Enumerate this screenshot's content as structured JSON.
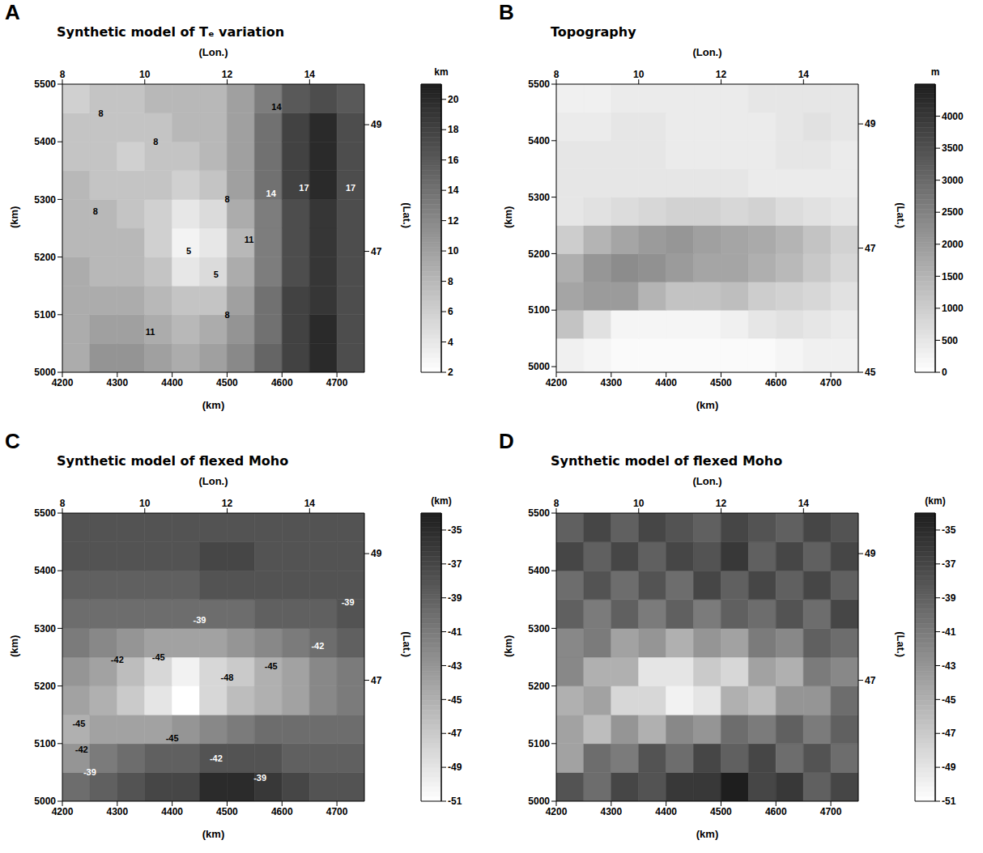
{
  "chart_data": [
    {
      "type": "heatmap",
      "panel": "A",
      "title": "Synthetic model of Tₑ variation",
      "x_label": "(km)",
      "y_label": "(km)",
      "x2_label": "(Lon.)",
      "y2_label": "(Lat.)",
      "xlim": [
        4200,
        4750
      ],
      "xticks": [
        4200,
        4300,
        4400,
        4500,
        4600,
        4700
      ],
      "ylim": [
        5000,
        5500
      ],
      "yticks": [
        5000,
        5100,
        5200,
        5300,
        5400,
        5500
      ],
      "x2lim": [
        8,
        15.33
      ],
      "x2ticks": [
        8,
        10,
        12,
        14
      ],
      "y2lim": [
        45.09,
        49.64
      ],
      "y2ticks": [
        47,
        49
      ],
      "x_edges": [
        4200,
        4250,
        4300,
        4350,
        4400,
        4450,
        4500,
        4550,
        4600,
        4650,
        4700,
        4750
      ],
      "y_edges": [
        5000,
        5050,
        5100,
        5150,
        5200,
        5250,
        5300,
        5350,
        5400,
        5450,
        5500
      ],
      "cells": [
        [
          9,
          11,
          11,
          10,
          9,
          10,
          12,
          15,
          18,
          20,
          17
        ],
        [
          9,
          10,
          10,
          9,
          8,
          9,
          11,
          14,
          18,
          20,
          17
        ],
        [
          9,
          9,
          9,
          8,
          7,
          7,
          10,
          14,
          18,
          19,
          17
        ],
        [
          9,
          8,
          8,
          7,
          4,
          5,
          9,
          13,
          17,
          19,
          17
        ],
        [
          8,
          8,
          8,
          6,
          3,
          4,
          8,
          13,
          17,
          19,
          17
        ],
        [
          8,
          8,
          7,
          6,
          4,
          5,
          9,
          13,
          17,
          19,
          17
        ],
        [
          8,
          7,
          7,
          7,
          6,
          7,
          10,
          14,
          18,
          20,
          17
        ],
        [
          7,
          7,
          6,
          7,
          7,
          8,
          10,
          14,
          18,
          20,
          17
        ],
        [
          7,
          7,
          7,
          7,
          8,
          8,
          10,
          14,
          18,
          20,
          17
        ],
        [
          6,
          7,
          7,
          8,
          8,
          8,
          10,
          13,
          16,
          17,
          16
        ]
      ],
      "colorbar": {
        "label": "km",
        "range": [
          2,
          21
        ],
        "ticks": [
          2,
          4,
          6,
          8,
          10,
          12,
          14,
          16,
          18,
          20
        ]
      },
      "annotations": [
        {
          "x": 4270,
          "y": 5450,
          "text": "8"
        },
        {
          "x": 4260,
          "y": 5280,
          "text": "8"
        },
        {
          "x": 4370,
          "y": 5400,
          "text": "8"
        },
        {
          "x": 4430,
          "y": 5210,
          "text": "5"
        },
        {
          "x": 4480,
          "y": 5170,
          "text": "5"
        },
        {
          "x": 4360,
          "y": 5070,
          "text": "11"
        },
        {
          "x": 4500,
          "y": 5100,
          "text": "8"
        },
        {
          "x": 4500,
          "y": 5300,
          "text": "8"
        },
        {
          "x": 4540,
          "y": 5230,
          "text": "11"
        },
        {
          "x": 4580,
          "y": 5310,
          "text": "14"
        },
        {
          "x": 4590,
          "y": 5460,
          "text": "14"
        },
        {
          "x": 4640,
          "y": 5320,
          "text": "17"
        },
        {
          "x": 4725,
          "y": 5320,
          "text": "17"
        }
      ]
    },
    {
      "type": "heatmap",
      "panel": "B",
      "title": "Topography",
      "x_label": "(km)",
      "y_label": "(km)",
      "x2_label": "(Lon.)",
      "y2_label": "(Lat.)",
      "xlim": [
        4200,
        4750
      ],
      "xticks": [
        4200,
        4300,
        4400,
        4500,
        4600,
        4700
      ],
      "ylim": [
        4990,
        5500
      ],
      "yticks": [
        5000,
        5100,
        5200,
        5300,
        5400,
        5500
      ],
      "x2lim": [
        8,
        15.33
      ],
      "x2ticks": [
        8,
        10,
        12,
        14
      ],
      "y2lim": [
        45,
        49.64
      ],
      "y2ticks": [
        45,
        47,
        49
      ],
      "x_edges": [
        4200,
        4250,
        4300,
        4350,
        4400,
        4450,
        4500,
        4550,
        4600,
        4650,
        4700,
        4750
      ],
      "y_edges": [
        4990,
        5050,
        5100,
        5150,
        5200,
        5250,
        5300,
        5350,
        5400,
        5450,
        5500
      ],
      "cells": [
        [
          300,
          200,
          100,
          100,
          100,
          100,
          100,
          100,
          200,
          300,
          300
        ],
        [
          1200,
          600,
          200,
          200,
          200,
          200,
          300,
          500,
          600,
          500,
          400
        ],
        [
          1800,
          2000,
          2000,
          1500,
          1200,
          1200,
          1300,
          1000,
          900,
          800,
          600
        ],
        [
          1600,
          2100,
          2300,
          2200,
          2000,
          1800,
          1800,
          1600,
          1400,
          1100,
          800
        ],
        [
          1000,
          1500,
          1800,
          2000,
          2100,
          1900,
          1800,
          1700,
          1500,
          1200,
          900
        ],
        [
          500,
          600,
          700,
          800,
          900,
          900,
          800,
          900,
          700,
          600,
          500
        ],
        [
          500,
          500,
          500,
          500,
          500,
          500,
          500,
          400,
          400,
          400,
          400
        ],
        [
          500,
          500,
          500,
          500,
          400,
          400,
          400,
          400,
          500,
          500,
          400
        ],
        [
          400,
          400,
          500,
          500,
          400,
          400,
          400,
          400,
          500,
          600,
          500
        ],
        [
          300,
          300,
          400,
          400,
          400,
          400,
          400,
          500,
          500,
          500,
          500
        ]
      ],
      "colorbar": {
        "label": "m",
        "range": [
          0,
          4500
        ],
        "ticks": [
          0,
          500,
          1000,
          1500,
          2000,
          2500,
          3000,
          3500,
          4000
        ]
      },
      "annotations": []
    },
    {
      "type": "heatmap",
      "panel": "C",
      "title": "Synthetic model of flexed Moho",
      "x_label": "(km)",
      "y_label": "(km)",
      "x2_label": "(Lon.)",
      "y2_label": "(Lat.)",
      "xlim": [
        4200,
        4750
      ],
      "xticks": [
        4200,
        4300,
        4400,
        4500,
        4600,
        4700
      ],
      "ylim": [
        5000,
        5500
      ],
      "yticks": [
        5000,
        5100,
        5200,
        5300,
        5400,
        5500
      ],
      "x2lim": [
        8,
        15.33
      ],
      "x2ticks": [
        8,
        10,
        12,
        14
      ],
      "y2lim": [
        45.09,
        49.64
      ],
      "y2ticks": [
        47,
        49
      ],
      "x_edges": [
        4200,
        4250,
        4300,
        4350,
        4400,
        4450,
        4500,
        4550,
        4600,
        4650,
        4700,
        4750
      ],
      "y_edges": [
        5000,
        5050,
        5100,
        5150,
        5200,
        5250,
        5300,
        5350,
        5400,
        5450,
        5500
      ],
      "cells": [
        [
          -40,
          -39,
          -38,
          -37,
          -37,
          -35,
          -35,
          -36,
          -37,
          -38,
          -38
        ],
        [
          -43,
          -41,
          -40,
          -39,
          -39,
          -38,
          -38,
          -38,
          -39,
          -39,
          -39
        ],
        [
          -45,
          -44,
          -44,
          -44,
          -43,
          -42,
          -41,
          -40,
          -40,
          -40,
          -40
        ],
        [
          -44,
          -45,
          -47,
          -49,
          -51,
          -48,
          -46,
          -45,
          -44,
          -42,
          -41
        ],
        [
          -43,
          -44,
          -46,
          -48,
          -50,
          -48,
          -47,
          -45,
          -44,
          -42,
          -41
        ],
        [
          -41,
          -42,
          -43,
          -44,
          -44,
          -44,
          -43,
          -42,
          -41,
          -40,
          -39
        ],
        [
          -40,
          -40,
          -40,
          -40,
          -40,
          -40,
          -40,
          -39,
          -39,
          -39,
          -38
        ],
        [
          -39,
          -39,
          -39,
          -39,
          -39,
          -38,
          -38,
          -38,
          -38,
          -38,
          -38
        ],
        [
          -38,
          -38,
          -38,
          -38,
          -38,
          -37,
          -37,
          -38,
          -38,
          -38,
          -38
        ],
        [
          -38,
          -38,
          -38,
          -38,
          -38,
          -38,
          -38,
          -38,
          -38,
          -38,
          -38
        ]
      ],
      "colorbar": {
        "label": "(km)",
        "range": [
          -51,
          -34
        ],
        "ticks": [
          -51,
          -49,
          -47,
          -45,
          -43,
          -41,
          -39,
          -37,
          -35
        ]
      },
      "annotations": [
        {
          "x": 4450,
          "y": 5315,
          "text": "-39"
        },
        {
          "x": 4300,
          "y": 5245,
          "text": "-42"
        },
        {
          "x": 4375,
          "y": 5250,
          "text": "-45"
        },
        {
          "x": 4500,
          "y": 5215,
          "text": "-48"
        },
        {
          "x": 4580,
          "y": 5235,
          "text": "-45"
        },
        {
          "x": 4665,
          "y": 5270,
          "text": "-42"
        },
        {
          "x": 4230,
          "y": 5135,
          "text": "-45"
        },
        {
          "x": 4235,
          "y": 5090,
          "text": "-42"
        },
        {
          "x": 4250,
          "y": 5050,
          "text": "-39"
        },
        {
          "x": 4400,
          "y": 5110,
          "text": "-45"
        },
        {
          "x": 4480,
          "y": 5075,
          "text": "-42"
        },
        {
          "x": 4560,
          "y": 5040,
          "text": "-39"
        },
        {
          "x": 4720,
          "y": 5345,
          "text": "-39"
        }
      ]
    },
    {
      "type": "heatmap",
      "panel": "D",
      "title": "Synthetic model of flexed Moho",
      "x_label": "(km)",
      "y_label": "(km)",
      "x2_label": "(Lon.)",
      "y2_label": "(Lat.)",
      "xlim": [
        4200,
        4750
      ],
      "xticks": [
        4200,
        4300,
        4400,
        4500,
        4600,
        4700
      ],
      "ylim": [
        5000,
        5500
      ],
      "yticks": [
        5000,
        5100,
        5200,
        5300,
        5400,
        5500
      ],
      "x2lim": [
        8,
        15.33
      ],
      "x2ticks": [
        8,
        10,
        12,
        14
      ],
      "y2lim": [
        45.09,
        49.64
      ],
      "y2ticks": [
        47,
        49
      ],
      "x_edges": [
        4200,
        4250,
        4300,
        4350,
        4400,
        4450,
        4500,
        4550,
        4600,
        4650,
        4700,
        4750
      ],
      "y_edges": [
        5000,
        5050,
        5100,
        5150,
        5200,
        5250,
        5300,
        5350,
        5400,
        5450,
        5500
      ],
      "cells": [
        [
          -38,
          -40,
          -37,
          -38,
          -36,
          -36,
          -34,
          -37,
          -36,
          -39,
          -37
        ],
        [
          -44,
          -40,
          -41,
          -38,
          -40,
          -37,
          -39,
          -37,
          -40,
          -38,
          -40
        ],
        [
          -44,
          -46,
          -43,
          -45,
          -42,
          -43,
          -40,
          -41,
          -39,
          -41,
          -39
        ],
        [
          -45,
          -44,
          -48,
          -48,
          -50,
          -49,
          -45,
          -46,
          -43,
          -43,
          -40
        ],
        [
          -42,
          -45,
          -45,
          -49,
          -49,
          -47,
          -48,
          -44,
          -45,
          -41,
          -42
        ],
        [
          -42,
          -41,
          -44,
          -43,
          -45,
          -43,
          -44,
          -41,
          -42,
          -39,
          -40
        ],
        [
          -39,
          -41,
          -39,
          -41,
          -39,
          -41,
          -39,
          -40,
          -38,
          -40,
          -37
        ],
        [
          -40,
          -38,
          -40,
          -38,
          -40,
          -37,
          -39,
          -37,
          -39,
          -37,
          -39
        ],
        [
          -37,
          -39,
          -37,
          -39,
          -37,
          -38,
          -36,
          -39,
          -37,
          -39,
          -37
        ],
        [
          -39,
          -37,
          -39,
          -37,
          -38,
          -39,
          -37,
          -38,
          -39,
          -37,
          -38
        ]
      ],
      "colorbar": {
        "label": "(km)",
        "range": [
          -51,
          -34
        ],
        "ticks": [
          -51,
          -49,
          -47,
          -45,
          -43,
          -41,
          -39,
          -37,
          -35
        ]
      },
      "annotations": []
    }
  ]
}
